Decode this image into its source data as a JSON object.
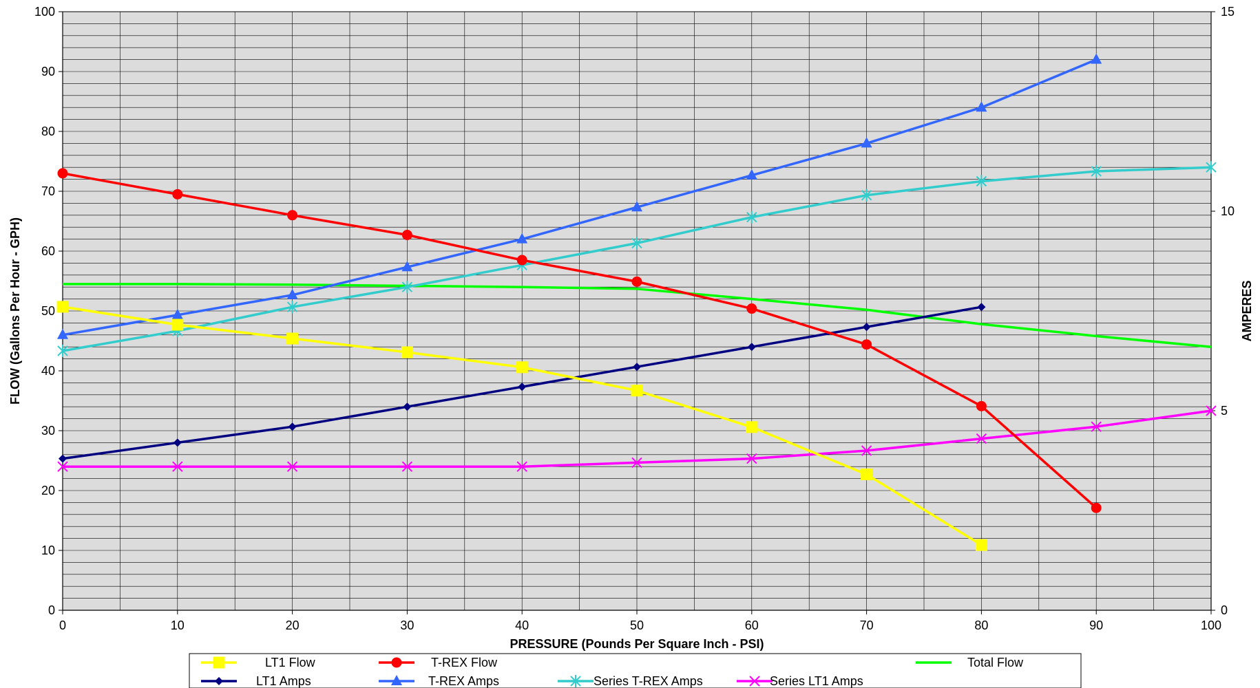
{
  "chart_data": {
    "type": "line",
    "title": "",
    "xlabel": "PRESSURE (Pounds Per Square Inch - PSI)",
    "ylabel": "FLOW (Gallons Per Hour - GPH)",
    "y2label": "AMPERES",
    "xlim": [
      0,
      100
    ],
    "ylim": [
      0,
      100
    ],
    "y2lim": [
      0,
      15
    ],
    "x_ticks": [
      0,
      10,
      20,
      30,
      40,
      50,
      60,
      70,
      80,
      90,
      100
    ],
    "y_ticks": [
      0,
      10,
      20,
      30,
      40,
      50,
      60,
      70,
      80,
      90,
      100
    ],
    "y2_ticks": [
      0,
      5,
      10,
      15
    ],
    "x_minor_grid_step": 5,
    "y_minor_grid_step": 2,
    "grid": true,
    "plot_background": "#dcdcdc",
    "legend_position": "bottom",
    "series": [
      {
        "name": "LT1 Flow",
        "axis": "left",
        "color": "#ffff00",
        "marker": "square",
        "x": [
          0,
          10,
          20,
          30,
          40,
          50,
          60,
          70,
          80
        ],
        "y": [
          50.7,
          47.7,
          45.4,
          43.1,
          40.6,
          36.7,
          30.6,
          22.7,
          10.9
        ]
      },
      {
        "name": "T-REX Flow",
        "axis": "left",
        "color": "#ff0000",
        "marker": "circle",
        "x": [
          0,
          10,
          20,
          30,
          40,
          50,
          60,
          70,
          80,
          90
        ],
        "y": [
          73.0,
          69.5,
          66.0,
          62.7,
          58.5,
          54.9,
          50.4,
          44.4,
          34.1,
          17.1
        ]
      },
      {
        "name": "Total Flow",
        "axis": "left",
        "color": "#00ff00",
        "marker": "none",
        "x": [
          0,
          10,
          20,
          30,
          40,
          50,
          60,
          70,
          80,
          90,
          100
        ],
        "y": [
          54.5,
          54.5,
          54.4,
          54.2,
          54.0,
          53.7,
          52.0,
          50.2,
          47.8,
          45.8,
          44.0
        ]
      },
      {
        "name": "LT1 Amps",
        "axis": "right",
        "color": "#000080",
        "marker": "diamond",
        "x": [
          0,
          10,
          20,
          30,
          40,
          50,
          60,
          70,
          80
        ],
        "y": [
          3.8,
          4.2,
          4.6,
          5.1,
          5.6,
          6.1,
          6.6,
          7.1,
          7.6
        ]
      },
      {
        "name": "T-REX Amps",
        "axis": "right",
        "color": "#3366ff",
        "marker": "triangle",
        "x": [
          0,
          10,
          20,
          30,
          40,
          50,
          60,
          70,
          80,
          90
        ],
        "y": [
          6.9,
          7.4,
          7.9,
          8.6,
          9.3,
          10.1,
          10.9,
          11.7,
          12.6,
          13.8
        ]
      },
      {
        "name": "Series T-REX Amps",
        "axis": "right",
        "color": "#33cccc",
        "marker": "asterisk",
        "x": [
          0,
          10,
          20,
          30,
          40,
          50,
          60,
          70,
          80,
          90,
          100
        ],
        "y": [
          6.5,
          7.0,
          7.6,
          8.1,
          8.65,
          9.2,
          9.85,
          10.4,
          10.75,
          11.0,
          11.1
        ]
      },
      {
        "name": "Series LT1 Amps",
        "axis": "right",
        "color": "#ff00ff",
        "marker": "x",
        "x": [
          0,
          10,
          20,
          30,
          40,
          50,
          60,
          70,
          80,
          90,
          100
        ],
        "y": [
          3.6,
          3.6,
          3.6,
          3.6,
          3.6,
          3.7,
          3.8,
          4.0,
          4.3,
          4.6,
          5.0
        ]
      }
    ],
    "legend_rows": [
      [
        "LT1 Flow",
        "T-REX Flow",
        "Total Flow"
      ],
      [
        "LT1 Amps",
        "T-REX Amps",
        "Series T-REX Amps",
        "Series LT1 Amps"
      ]
    ]
  }
}
